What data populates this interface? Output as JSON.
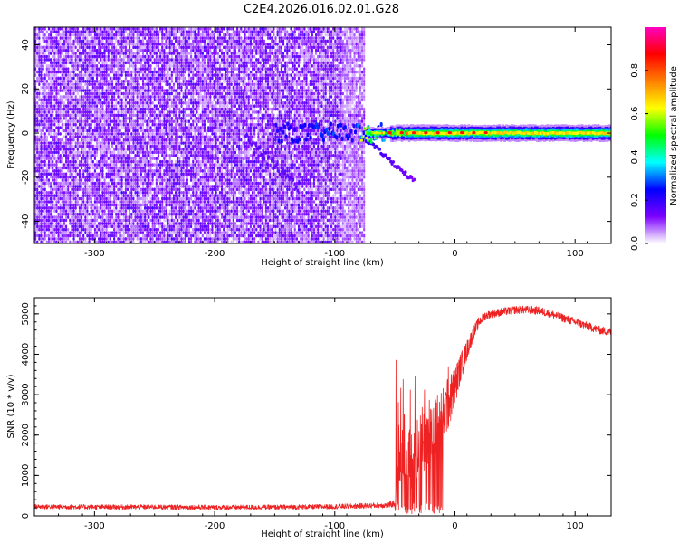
{
  "title": "C2E4.2026.016.02.01.G28",
  "chart_data": [
    {
      "type": "heatmap",
      "xlabel": "Height of straight line (km)",
      "ylabel": "Frequency (Hz)",
      "xlim": [
        -350,
        130
      ],
      "ylim": [
        -50,
        48
      ],
      "xticks": [
        -300,
        -200,
        -100,
        0,
        100
      ],
      "yticks": [
        -40,
        -20,
        0,
        20,
        40
      ],
      "noise_region_x": [
        -350,
        -75
      ],
      "tone": {
        "x_range": [
          -75,
          130
        ],
        "center_freq": 0,
        "band_x": [
          -60,
          130
        ],
        "band_halfwidth_hz": [
          2,
          4
        ],
        "peak_points_x": [
          -55,
          -45,
          -35,
          -25,
          -15,
          -5,
          5,
          15,
          25
        ]
      },
      "blue_streak": {
        "x": [
          -150,
          -60
        ],
        "freq_center": 0
      },
      "diagonal_feature": {
        "x": [
          -75,
          -35
        ],
        "freq": [
          -3,
          -22
        ]
      },
      "colorbar": {
        "label": "Normalized spectral amplitude",
        "range": [
          0.0,
          1.0
        ],
        "ticks": [
          0.0,
          0.2,
          0.4,
          0.6,
          0.8
        ],
        "tick_labels": [
          "0.0",
          "0.2",
          "0.4",
          "0.6",
          "0.8"
        ],
        "colors": [
          "#ffffff",
          "#7b00ff",
          "#0000ff",
          "#00ffff",
          "#00ff00",
          "#ffff00",
          "#ff8000",
          "#ff0000",
          "#ff00c0"
        ]
      }
    },
    {
      "type": "line",
      "xlabel": "Height of straight line (km)",
      "ylabel": "SNR (10 * v/v)",
      "xlim": [
        -350,
        130
      ],
      "ylim": [
        0,
        5400
      ],
      "xticks": [
        -300,
        -200,
        -100,
        0,
        100
      ],
      "yticks": [
        0,
        1000,
        2000,
        3000,
        4000,
        5000
      ],
      "color": "#ee2222",
      "series": [
        {
          "name": "SNR",
          "x": [
            -350,
            -300,
            -250,
            -200,
            -150,
            -100,
            -75,
            -55,
            -50,
            -47,
            -44,
            -40,
            -35,
            -30,
            -25,
            -20,
            -15,
            -10,
            -5,
            0,
            5,
            10,
            15,
            20,
            25,
            30,
            40,
            50,
            60,
            70,
            80,
            90,
            100,
            110,
            120,
            130
          ],
          "base": [
            230,
            220,
            220,
            210,
            215,
            230,
            250,
            270,
            300,
            1500,
            1800,
            1600,
            1500,
            1700,
            1900,
            2000,
            2200,
            2500,
            2800,
            3200,
            3700,
            4100,
            4500,
            4800,
            4950,
            5000,
            5050,
            5100,
            5100,
            5080,
            5000,
            4900,
            4800,
            4700,
            4600,
            4550
          ],
          "spread": [
            120,
            120,
            120,
            120,
            120,
            120,
            130,
            150,
            150,
            1500,
            1600,
            1700,
            1700,
            1700,
            1700,
            1600,
            1600,
            1500,
            1300,
            1000,
            700,
            500,
            350,
            250,
            220,
            200,
            200,
            200,
            200,
            200,
            200,
            200,
            200,
            200,
            200,
            200
          ],
          "peak_values": [
            4000,
            4200,
            3900,
            3500,
            3200
          ]
        }
      ]
    }
  ]
}
